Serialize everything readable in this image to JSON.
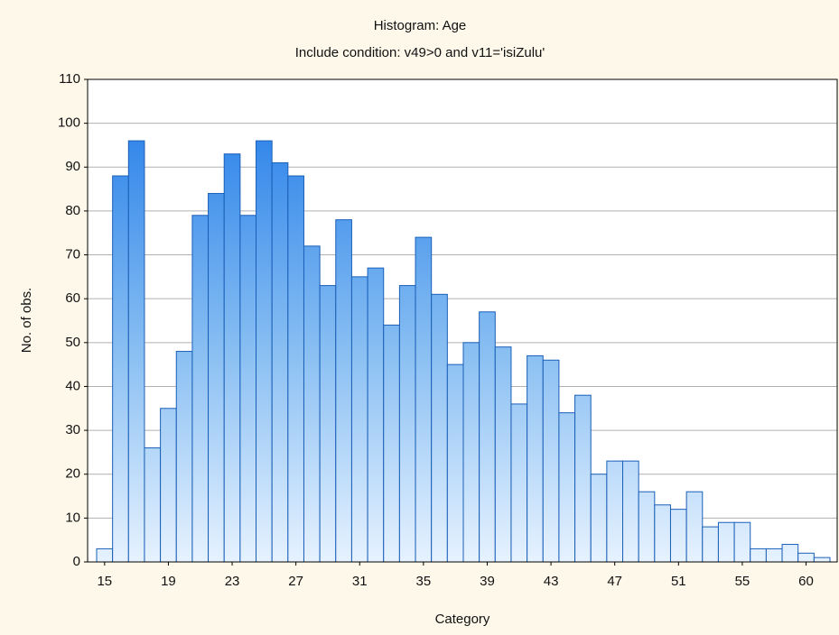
{
  "chart_data": {
    "type": "bar",
    "title": "Histogram: Age",
    "subtitle": "Include condition: v49>0 and v11='isiZulu'",
    "x_label": "Category",
    "y_label": "No. of obs.",
    "categories": [
      15,
      null,
      null,
      null,
      19,
      null,
      null,
      null,
      23,
      null,
      null,
      null,
      27,
      null,
      null,
      null,
      31,
      null,
      null,
      null,
      35,
      null,
      null,
      null,
      39,
      null,
      null,
      null,
      43,
      null,
      null,
      null,
      47,
      null,
      null,
      null,
      51,
      null,
      null,
      null,
      55,
      null,
      null,
      null,
      60,
      null
    ],
    "values": [
      3,
      88,
      96,
      26,
      35,
      48,
      79,
      84,
      93,
      79,
      96,
      91,
      88,
      72,
      63,
      78,
      65,
      67,
      54,
      63,
      74,
      61,
      45,
      50,
      57,
      49,
      36,
      47,
      46,
      34,
      38,
      20,
      23,
      23,
      16,
      13,
      12,
      16,
      8,
      9,
      9,
      3,
      3,
      4,
      2,
      1
    ],
    "color": "#1e7ae6",
    "ylim": [
      0,
      110
    ],
    "yticks": [
      0,
      10,
      20,
      30,
      40,
      50,
      60,
      70,
      80,
      90,
      100,
      110
    ],
    "grid": true
  }
}
